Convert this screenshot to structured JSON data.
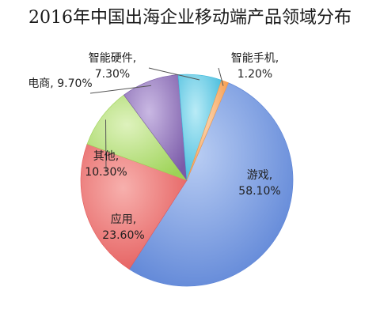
{
  "chart_data": {
    "type": "pie",
    "title": "2016年中国出海企业移动端产品领域分布",
    "slices": [
      {
        "name": "游戏",
        "value": 58.1,
        "label": "58.10%",
        "color": "#5b83d6"
      },
      {
        "name": "应用",
        "value": 23.6,
        "label": "23.60%",
        "color": "#e45a5a"
      },
      {
        "name": "其他",
        "value": 10.3,
        "label": "10.30%",
        "color": "#9dd356"
      },
      {
        "name": "电商",
        "value": 9.7,
        "label": "9.70%",
        "color": "#7a5aa8"
      },
      {
        "name": "智能硬件",
        "value": 7.3,
        "label": "7.30%",
        "color": "#3fb9db"
      },
      {
        "name": "智能手机",
        "value": 1.2,
        "label": "1.20%",
        "color": "#f59a4a"
      }
    ],
    "legend": "none",
    "data_labels": "category, percentage"
  }
}
